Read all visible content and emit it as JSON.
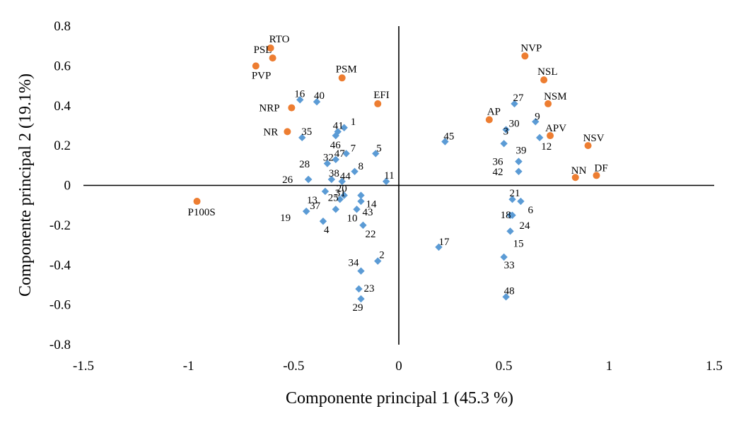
{
  "chart_data": {
    "type": "scatter",
    "title": "",
    "xlabel": "Componente principal 1 (45.3 %)",
    "ylabel": "Componente principal 2 (19.1%)",
    "xlim": [
      -1.5,
      1.5
    ],
    "ylim": [
      -0.8,
      0.8
    ],
    "x_ticks": [
      "-1.5",
      "-1",
      "-0.5",
      "0",
      "0.5",
      "1",
      "1.5"
    ],
    "y_ticks": [
      "0.8",
      "0.6",
      "0.4",
      "0.2",
      "0",
      "-0.2",
      "-0.4",
      "-0.6",
      "-0.8"
    ],
    "x_tick_values": [
      -1.5,
      -1,
      -0.5,
      0,
      0.5,
      1,
      1.5
    ],
    "y_tick_values": [
      0.8,
      0.6,
      0.4,
      0.2,
      0,
      -0.2,
      -0.4,
      -0.6,
      -0.8
    ],
    "grid": false,
    "series": [
      {
        "color": "#ED7D31",
        "marker": "circle",
        "points": [
          {
            "label": "RTO",
            "x": -0.61,
            "y": 0.69
          },
          {
            "label": "PSL",
            "x": -0.6,
            "y": 0.64
          },
          {
            "label": "PVP",
            "x": -0.68,
            "y": 0.6
          },
          {
            "label": "PSM",
            "x": -0.27,
            "y": 0.54
          },
          {
            "label": "EFI",
            "x": -0.1,
            "y": 0.41
          },
          {
            "label": "NRP",
            "x": -0.51,
            "y": 0.39
          },
          {
            "label": "NR",
            "x": -0.53,
            "y": 0.27
          },
          {
            "label": "P100S",
            "x": -0.96,
            "y": -0.08
          },
          {
            "label": "NVP",
            "x": 0.6,
            "y": 0.65
          },
          {
            "label": "NSL",
            "x": 0.69,
            "y": 0.53
          },
          {
            "label": "NSM",
            "x": 0.71,
            "y": 0.41
          },
          {
            "label": "AP",
            "x": 0.43,
            "y": 0.33
          },
          {
            "label": "APV",
            "x": 0.72,
            "y": 0.25
          },
          {
            "label": "NSV",
            "x": 0.9,
            "y": 0.2
          },
          {
            "label": "NN",
            "x": 0.84,
            "y": 0.04
          },
          {
            "label": "DF",
            "x": 0.94,
            "y": 0.05
          }
        ]
      },
      {
        "color": "#5B9BD5",
        "marker": "diamond",
        "points": [
          {
            "label": "16",
            "x": -0.47,
            "y": 0.43
          },
          {
            "label": "40",
            "x": -0.39,
            "y": 0.42
          },
          {
            "label": "41",
            "x": -0.29,
            "y": 0.27
          },
          {
            "label": "1",
            "x": -0.26,
            "y": 0.29
          },
          {
            "label": "46",
            "x": -0.3,
            "y": 0.25
          },
          {
            "label": "35",
            "x": -0.46,
            "y": 0.24
          },
          {
            "label": "7",
            "x": -0.25,
            "y": 0.16
          },
          {
            "label": "5",
            "x": -0.11,
            "y": 0.16
          },
          {
            "label": "32",
            "x": -0.34,
            "y": 0.11
          },
          {
            "label": "47",
            "x": -0.3,
            "y": 0.13
          },
          {
            "label": "8",
            "x": -0.21,
            "y": 0.07
          },
          {
            "label": "28",
            "x": -0.43,
            "y": 0.03
          },
          {
            "label": "44",
            "x": -0.27,
            "y": 0.02
          },
          {
            "label": "26",
            "x": -0.43,
            "y": 0.03
          },
          {
            "label": "11",
            "x": -0.06,
            "y": 0.02
          },
          {
            "label": "38",
            "x": -0.32,
            "y": 0.03
          },
          {
            "label": "13",
            "x": -0.35,
            "y": -0.03
          },
          {
            "label": "20",
            "x": -0.26,
            "y": -0.05
          },
          {
            "label": "14",
            "x": -0.18,
            "y": -0.05
          },
          {
            "label": "31",
            "x": -0.28,
            "y": -0.07
          },
          {
            "label": "43",
            "x": -0.18,
            "y": -0.08
          },
          {
            "label": "19",
            "x": -0.44,
            "y": -0.13
          },
          {
            "label": "37",
            "x": -0.44,
            "y": -0.13
          },
          {
            "label": "10",
            "x": -0.2,
            "y": -0.12
          },
          {
            "label": "25",
            "x": -0.3,
            "y": -0.12
          },
          {
            "label": "4",
            "x": -0.36,
            "y": -0.18
          },
          {
            "label": "22",
            "x": -0.17,
            "y": -0.2
          },
          {
            "label": "2",
            "x": -0.1,
            "y": -0.38
          },
          {
            "label": "34",
            "x": -0.18,
            "y": -0.43
          },
          {
            "label": "23",
            "x": -0.19,
            "y": -0.52
          },
          {
            "label": "29",
            "x": -0.18,
            "y": -0.57
          },
          {
            "label": "45",
            "x": 0.22,
            "y": 0.22
          },
          {
            "label": "27",
            "x": 0.55,
            "y": 0.41
          },
          {
            "label": "9",
            "x": 0.65,
            "y": 0.32
          },
          {
            "label": "30",
            "x": 0.51,
            "y": 0.28
          },
          {
            "label": "3",
            "x": 0.5,
            "y": 0.21
          },
          {
            "label": "12",
            "x": 0.67,
            "y": 0.24
          },
          {
            "label": "39",
            "x": 0.57,
            "y": 0.12
          },
          {
            "label": "36",
            "x": 0.57,
            "y": 0.12
          },
          {
            "label": "42",
            "x": 0.57,
            "y": 0.07
          },
          {
            "label": "21",
            "x": 0.54,
            "y": -0.07
          },
          {
            "label": "6",
            "x": 0.58,
            "y": -0.08
          },
          {
            "label": "18",
            "x": 0.53,
            "y": -0.15
          },
          {
            "label": "24",
            "x": 0.54,
            "y": -0.15
          },
          {
            "label": "15",
            "x": 0.53,
            "y": -0.23
          },
          {
            "label": "17",
            "x": 0.19,
            "y": -0.31
          },
          {
            "label": "33",
            "x": 0.5,
            "y": -0.36
          },
          {
            "label": "48",
            "x": 0.51,
            "y": -0.56
          }
        ]
      }
    ]
  }
}
